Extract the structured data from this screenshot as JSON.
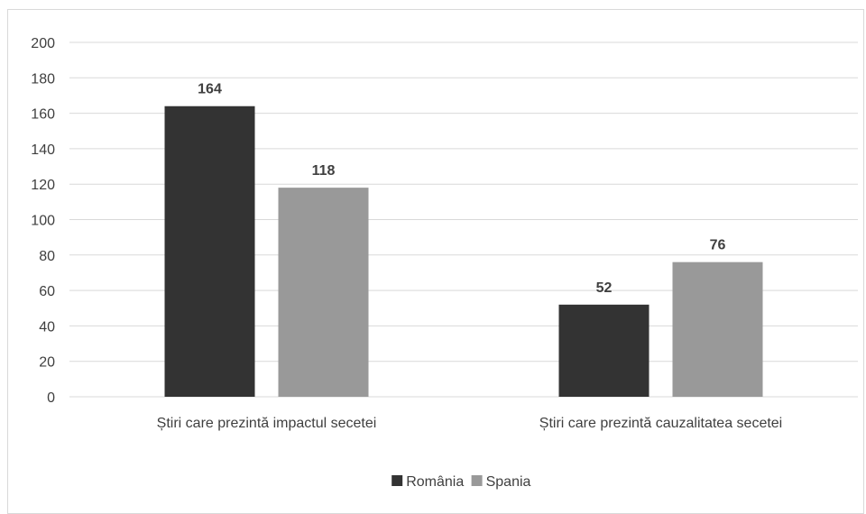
{
  "chart_data": {
    "type": "bar",
    "title": "",
    "xlabel": "",
    "ylabel": "",
    "categories": [
      "Știri care prezintă impactul secetei",
      "Știri care prezintă cauzalitatea secetei"
    ],
    "series": [
      {
        "name": "România",
        "values": [
          164,
          52
        ],
        "color": "#333333"
      },
      {
        "name": "Spania",
        "values": [
          118,
          76
        ],
        "color": "#999999"
      }
    ],
    "ylim": [
      0,
      200
    ],
    "yticks": [
      0,
      20,
      40,
      60,
      80,
      100,
      120,
      140,
      160,
      180,
      200
    ],
    "grid": true,
    "gridColor": "#d9d9d9",
    "legend": "bottom",
    "data_labels": true
  }
}
